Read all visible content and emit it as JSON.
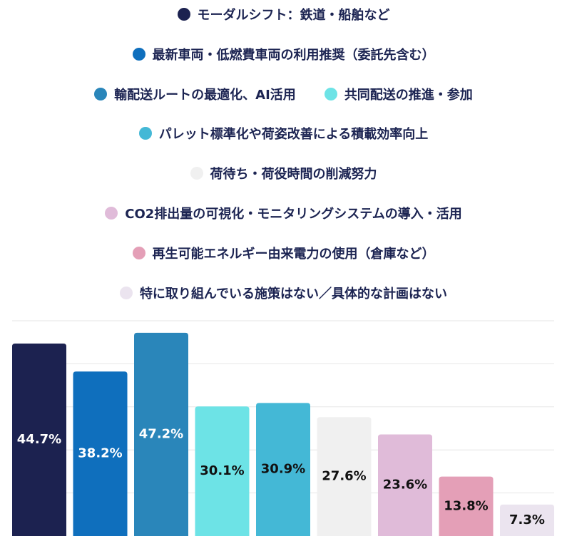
{
  "chart_data": {
    "type": "bar",
    "title": "",
    "xlabel": "",
    "ylabel": "",
    "ylim": [
      0,
      50
    ],
    "grid": true,
    "legend_position": "top",
    "categories": [
      "モーダルシフト：鉄道・船舶など",
      "最新車両・低燃費車両の利用推奨（委託先含む）",
      "輸配送ルートの最適化、AI活用",
      "共同配送の推進・参加",
      "パレット標準化や荷姿改善による積載効率向上",
      "荷待ち・荷役時間の削減努力",
      "CO2排出量の可視化・モニタリングシステムの導入・活用",
      "再生可能エネルギー由来電力の使用（倉庫など）",
      "特に取り組んでいる施策はない／具体的な計画はない"
    ],
    "values": [
      44.7,
      38.2,
      47.2,
      30.1,
      30.9,
      27.6,
      23.6,
      13.8,
      7.3
    ],
    "labels": [
      "44.7%",
      "38.2%",
      "47.2%",
      "30.1%",
      "30.9%",
      "27.6%",
      "23.6%",
      "13.8%",
      "7.3%"
    ],
    "colors": [
      "#1c2250",
      "#0f6fbd",
      "#2a86ba",
      "#6de3e6",
      "#44b8d6",
      "#f0f0f0",
      "#e0bbd9",
      "#e49fb7",
      "#ebe4ef"
    ],
    "label_colors": [
      "#ffffff",
      "#ffffff",
      "#ffffff",
      "#111111",
      "#111111",
      "#111111",
      "#111111",
      "#111111",
      "#111111"
    ]
  }
}
